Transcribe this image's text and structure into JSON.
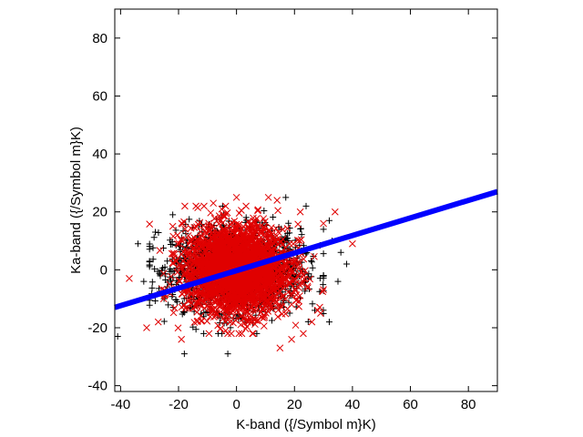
{
  "chart_data": {
    "type": "scatter",
    "xlabel": "K-band ({/Symbol m}K)",
    "ylabel": "Ka-band ({/Symbol m}K)",
    "xlim": [
      -42,
      90
    ],
    "ylim": [
      -42,
      90
    ],
    "xticks": [
      -40,
      -20,
      0,
      20,
      40,
      60,
      80
    ],
    "yticks": [
      -40,
      -20,
      0,
      20,
      40,
      60,
      80
    ],
    "grid": false,
    "legend": "none",
    "colors": {
      "black_series": "#000000",
      "red_series": "#e00000",
      "fit_line": "#0000ff"
    },
    "series": [
      {
        "marker": "plus",
        "color": "#000000",
        "distribution": {
          "count": 1800,
          "center": [
            0,
            0
          ],
          "sd": [
            11,
            7
          ]
        },
        "points": [
          [
            -41,
            -23
          ],
          [
            -34,
            9
          ],
          [
            -32,
            -4
          ],
          [
            -30,
            3
          ],
          [
            -28,
            13
          ],
          [
            -25,
            -10
          ],
          [
            -22,
            19
          ],
          [
            -18,
            -29
          ],
          [
            -3,
            -29
          ],
          [
            7,
            -22
          ],
          [
            17,
            25
          ],
          [
            24,
            22
          ],
          [
            27,
            -14
          ],
          [
            30,
            14
          ],
          [
            32,
            -18
          ],
          [
            33,
            10
          ],
          [
            35,
            -4
          ],
          [
            36,
            6
          ],
          [
            38,
            2
          ],
          [
            32,
            17
          ]
        ]
      },
      {
        "marker": "cross",
        "color": "#e00000",
        "distribution": {
          "count": 2600,
          "center": [
            0,
            0
          ],
          "sd": [
            9,
            7.5
          ]
        },
        "points": [
          [
            -37,
            -3
          ],
          [
            -31,
            -20
          ],
          [
            -27,
            -18
          ],
          [
            -22,
            15
          ],
          [
            -19,
            -24
          ],
          [
            -14,
            22
          ],
          [
            -8,
            23
          ],
          [
            0,
            25
          ],
          [
            11,
            25
          ],
          [
            14,
            24
          ],
          [
            15,
            -27
          ],
          [
            19,
            -24
          ],
          [
            22,
            20
          ],
          [
            26,
            -18
          ],
          [
            28,
            -14
          ],
          [
            30,
            16
          ],
          [
            34,
            20
          ],
          [
            40,
            9
          ],
          [
            29,
            -15
          ]
        ]
      }
    ],
    "fit_line": {
      "color": "#0000ff",
      "x": [
        -42,
        90
      ],
      "y": [
        -13,
        27
      ]
    }
  }
}
